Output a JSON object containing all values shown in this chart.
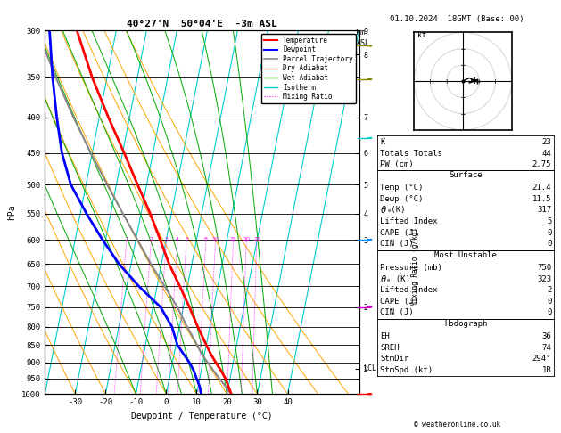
{
  "title": "40°27'N  50°04'E  -3m ASL",
  "date_str": "01.10.2024  18GMT (Base: 00)",
  "xlabel": "Dewpoint / Temperature (°C)",
  "ylabel_left": "hPa",
  "pressure_ticks": [
    300,
    350,
    400,
    450,
    500,
    550,
    600,
    650,
    700,
    750,
    800,
    850,
    900,
    950,
    1000
  ],
  "temp_range": [
    -40,
    40
  ],
  "skew_factor": 45,
  "temp_profile": {
    "pressure": [
      1000,
      975,
      950,
      925,
      900,
      875,
      850,
      800,
      750,
      700,
      650,
      600,
      550,
      500,
      450,
      400,
      350,
      300
    ],
    "temperature": [
      21.4,
      20.0,
      18.5,
      16.5,
      14.2,
      12.0,
      10.0,
      6.0,
      2.0,
      -2.5,
      -7.5,
      -12.0,
      -17.0,
      -23.0,
      -29.5,
      -37.0,
      -45.0,
      -53.0
    ]
  },
  "dewp_profile": {
    "pressure": [
      1000,
      975,
      950,
      925,
      900,
      875,
      850,
      800,
      750,
      700,
      650,
      600,
      550,
      500,
      450,
      400,
      350,
      300
    ],
    "temperature": [
      11.5,
      10.5,
      9.0,
      7.5,
      5.5,
      3.0,
      0.5,
      -2.5,
      -7.5,
      -16.0,
      -24.0,
      -31.0,
      -38.0,
      -45.0,
      -50.0,
      -54.0,
      -58.0,
      -62.0
    ]
  },
  "parcel_profile": {
    "pressure": [
      1000,
      975,
      950,
      925,
      900,
      875,
      850,
      800,
      750,
      700,
      650,
      600,
      550,
      500,
      450,
      400,
      350,
      300
    ],
    "temperature": [
      21.4,
      19.0,
      16.5,
      14.0,
      11.5,
      9.0,
      7.0,
      2.5,
      -2.0,
      -7.5,
      -13.5,
      -19.5,
      -26.0,
      -33.0,
      -40.5,
      -48.5,
      -57.0,
      -66.0
    ]
  },
  "km_pres": [
    300,
    325,
    400,
    450,
    500,
    550,
    600,
    750,
    920
  ],
  "km_labels": [
    "9",
    "8",
    "7",
    "6",
    "5",
    "4",
    "3",
    "2",
    "1"
  ],
  "lcl_pressure": 920,
  "mixing_ratio_values": [
    1,
    2,
    3,
    4,
    5,
    8,
    10,
    15,
    20,
    25
  ],
  "mixing_ratio_labels": [
    "1",
    "2",
    "3",
    "4",
    "5",
    "8",
    "10",
    "15",
    "20",
    "25"
  ],
  "colors": {
    "temperature": "#ff0000",
    "dewpoint": "#0000ff",
    "parcel": "#888888",
    "dry_adiabat": "#ffa500",
    "wet_adiabat": "#00aa00",
    "isotherm": "#00cccc",
    "mixing_ratio": "#ff00ff",
    "background": "#ffffff"
  },
  "stats": {
    "K": "23",
    "Totals_Totals": "44",
    "PW_cm": "2.75",
    "Surface_Temp": "21.4",
    "Surface_Dewp": "11.5",
    "theta_e_K_surf": "317",
    "Lifted_Index_surf": "5",
    "CAPE_surf": "0",
    "CIN_surf": "0",
    "MU_Pressure_mb": "750",
    "MU_theta_e_K": "323",
    "MU_Lifted_Index": "2",
    "MU_CAPE": "0",
    "MU_CIN": "0",
    "Hodo_EH": "36",
    "Hodo_SREH": "74",
    "Hodo_StmDir": "294°",
    "Hodo_StmSpd": "1B"
  }
}
